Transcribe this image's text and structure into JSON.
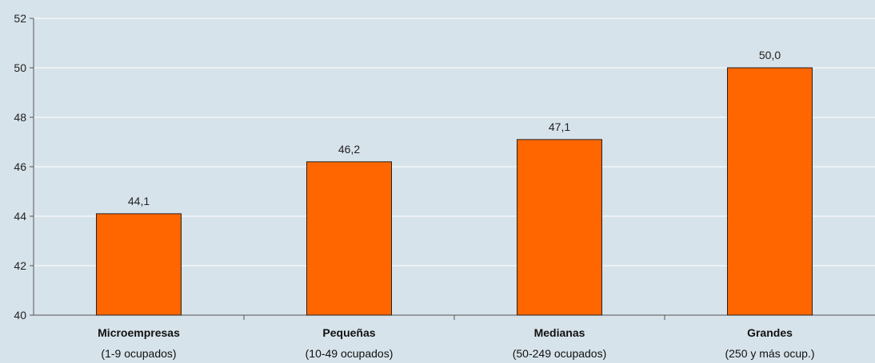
{
  "chart_data": {
    "type": "bar",
    "categories": [
      "Microempresas",
      "Pequeñas",
      "Medianas",
      "Grandes"
    ],
    "category_sublabels": [
      "(1-9 ocupados)",
      "(10-49 ocupados)",
      "(50-249 ocupados)",
      "(250 y más ocup.)"
    ],
    "values": [
      44.1,
      46.2,
      47.1,
      50.0
    ],
    "value_labels": [
      "44,1",
      "46,2",
      "47,1",
      "50,0"
    ],
    "y_ticks": [
      40,
      42,
      44,
      46,
      48,
      50,
      52
    ],
    "ylim": [
      40,
      52
    ],
    "grid": true,
    "legend": "none",
    "title": "",
    "xlabel": "",
    "ylabel": "",
    "colors": {
      "bar_fill": "#ff6600",
      "bar_stroke": "#222222",
      "grid": "#ffffff",
      "background": "#d7e3ea",
      "axis": "#555555"
    }
  }
}
